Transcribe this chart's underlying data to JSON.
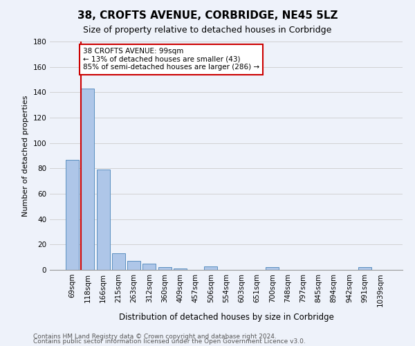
{
  "title": "38, CROFTS AVENUE, CORBRIDGE, NE45 5LZ",
  "subtitle": "Size of property relative to detached houses in Corbridge",
  "xlabel": "Distribution of detached houses by size in Corbridge",
  "ylabel": "Number of detached properties",
  "categories": [
    "69sqm",
    "118sqm",
    "166sqm",
    "215sqm",
    "263sqm",
    "312sqm",
    "360sqm",
    "409sqm",
    "457sqm",
    "506sqm",
    "554sqm",
    "603sqm",
    "651sqm",
    "700sqm",
    "748sqm",
    "797sqm",
    "845sqm",
    "894sqm",
    "942sqm",
    "991sqm",
    "1039sqm"
  ],
  "values": [
    87,
    143,
    79,
    13,
    7,
    5,
    2,
    1,
    0,
    3,
    0,
    0,
    0,
    2,
    0,
    0,
    0,
    0,
    0,
    2,
    0
  ],
  "bar_color": "#aec6e8",
  "bar_edge_color": "#5a8fc0",
  "property_line_color": "#cc0000",
  "property_line_x": 0.575,
  "annotation_text": "38 CROFTS AVENUE: 99sqm\n← 13% of detached houses are smaller (43)\n85% of semi-detached houses are larger (286) →",
  "annotation_box_facecolor": "#ffffff",
  "annotation_box_edgecolor": "#cc0000",
  "ylim": [
    0,
    180
  ],
  "yticks": [
    0,
    20,
    40,
    60,
    80,
    100,
    120,
    140,
    160,
    180
  ],
  "grid_color": "#cccccc",
  "background_color": "#eef2fa",
  "footer1": "Contains HM Land Registry data © Crown copyright and database right 2024.",
  "footer2": "Contains public sector information licensed under the Open Government Licence v3.0.",
  "title_fontsize": 11,
  "subtitle_fontsize": 9,
  "xlabel_fontsize": 8.5,
  "ylabel_fontsize": 8,
  "tick_fontsize": 7.5,
  "annotation_fontsize": 7.5,
  "footer_fontsize": 6.5
}
